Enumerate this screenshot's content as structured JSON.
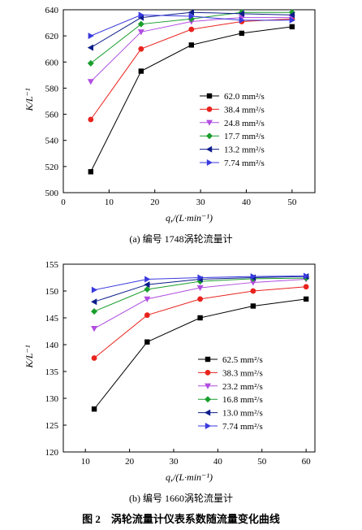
{
  "figure_caption": "图 2　涡轮流量计仪表系数随流量变化曲线",
  "chart_data": [
    {
      "type": "line",
      "caption": "(a) 编号 1748涡轮流量计",
      "xlabel": "q,/(L·min⁻¹)",
      "ylabel": "K/L⁻¹",
      "xlim": [
        0,
        55
      ],
      "ylim": [
        500,
        640
      ],
      "xticks": [
        0,
        10,
        20,
        30,
        40,
        50
      ],
      "yticks": [
        500,
        520,
        540,
        560,
        580,
        600,
        620,
        640
      ],
      "legend_position": "lower-right",
      "grid": false,
      "x": [
        6,
        17,
        28,
        39,
        50
      ],
      "series": [
        {
          "name": "62.0 mm²/s",
          "color": "#000000",
          "marker": "square",
          "values": [
            516,
            593,
            613,
            622,
            627
          ]
        },
        {
          "name": "38.4 mm²/s",
          "color": "#e8231d",
          "marker": "circle",
          "values": [
            556,
            610,
            625,
            631,
            633
          ]
        },
        {
          "name": "24.8 mm²/s",
          "color": "#b04de0",
          "marker": "triangle-down",
          "values": [
            585,
            623,
            631,
            634,
            634
          ]
        },
        {
          "name": "17.7 mm²/s",
          "color": "#1a9e2c",
          "marker": "diamond",
          "values": [
            599,
            629,
            633,
            638,
            638
          ]
        },
        {
          "name": "13.2 mm²/s",
          "color": "#0c1d8a",
          "marker": "triangle-left",
          "values": [
            611,
            634,
            638,
            637,
            636
          ]
        },
        {
          "name": "7.74 mm²/s",
          "color": "#3a3ae0",
          "marker": "triangle-right",
          "values": [
            620,
            636,
            635,
            632,
            632
          ]
        }
      ]
    },
    {
      "type": "line",
      "caption": "(b) 编号 1660涡轮流量计",
      "xlabel": "q,/(L·min⁻¹)",
      "ylabel": "K/L⁻¹",
      "xlim": [
        5,
        62
      ],
      "ylim": [
        120,
        155
      ],
      "xticks": [
        10,
        20,
        30,
        40,
        50,
        60
      ],
      "yticks": [
        120,
        125,
        130,
        135,
        140,
        145,
        150,
        155
      ],
      "legend_position": "lower-right",
      "grid": false,
      "x": [
        12,
        24,
        36,
        48,
        60
      ],
      "series": [
        {
          "name": "62.5 mm²/s",
          "color": "#000000",
          "marker": "square",
          "values": [
            128,
            140.5,
            145,
            147.2,
            148.5
          ]
        },
        {
          "name": "38.3 mm²/s",
          "color": "#e8231d",
          "marker": "circle",
          "values": [
            137.5,
            145.5,
            148.5,
            150,
            150.8
          ]
        },
        {
          "name": "23.2 mm²/s",
          "color": "#b04de0",
          "marker": "triangle-down",
          "values": [
            143,
            148.5,
            150.6,
            151.6,
            152.2
          ]
        },
        {
          "name": "16.8 mm²/s",
          "color": "#1a9e2c",
          "marker": "diamond",
          "values": [
            146.2,
            150.3,
            151.8,
            152.3,
            152.4
          ]
        },
        {
          "name": "13.0 mm²/s",
          "color": "#0c1d8a",
          "marker": "triangle-left",
          "values": [
            148,
            151.2,
            152.2,
            152.5,
            152.7
          ]
        },
        {
          "name": "7.74 mm²/s",
          "color": "#3a3ae0",
          "marker": "triangle-right",
          "values": [
            150.2,
            152.2,
            152.5,
            152.7,
            152.8
          ]
        }
      ]
    }
  ]
}
